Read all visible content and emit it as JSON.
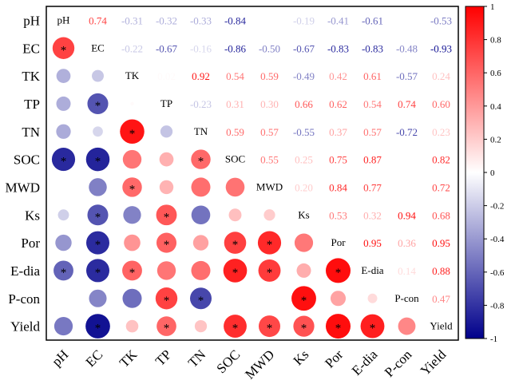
{
  "chart_data": {
    "type": "heatmap",
    "title": "",
    "variables": [
      "pH",
      "EC",
      "TK",
      "TP",
      "TN",
      "SOC",
      "MWD",
      "Ks",
      "Por",
      "E-dia",
      "P-con",
      "Yield"
    ],
    "matrix": [
      [
        1.0,
        0.74,
        -0.31,
        -0.32,
        -0.33,
        -0.84,
        null,
        -0.19,
        -0.41,
        -0.61,
        null,
        -0.53
      ],
      [
        0.74,
        1.0,
        -0.22,
        -0.67,
        -0.16,
        -0.86,
        -0.5,
        -0.67,
        -0.83,
        -0.83,
        -0.48,
        -0.93
      ],
      [
        -0.31,
        -0.22,
        1.0,
        0.02,
        0.92,
        0.54,
        0.59,
        -0.49,
        0.42,
        0.61,
        -0.57,
        0.24
      ],
      [
        -0.32,
        -0.67,
        0.02,
        1.0,
        -0.23,
        0.31,
        0.3,
        0.66,
        0.62,
        0.54,
        0.74,
        0.6
      ],
      [
        -0.33,
        -0.16,
        0.92,
        -0.23,
        1.0,
        0.59,
        0.57,
        -0.55,
        0.37,
        0.57,
        -0.72,
        0.23
      ],
      [
        -0.84,
        -0.86,
        0.54,
        0.31,
        0.59,
        1.0,
        0.55,
        0.25,
        0.75,
        0.87,
        null,
        0.82
      ],
      [
        null,
        -0.5,
        0.59,
        0.3,
        0.57,
        0.55,
        1.0,
        0.2,
        0.84,
        0.77,
        null,
        0.72
      ],
      [
        -0.19,
        -0.67,
        -0.49,
        0.66,
        -0.55,
        0.25,
        0.2,
        1.0,
        0.53,
        0.32,
        0.94,
        0.68
      ],
      [
        -0.41,
        -0.83,
        0.42,
        0.62,
        0.37,
        0.75,
        0.84,
        0.53,
        1.0,
        0.95,
        0.36,
        0.95
      ],
      [
        -0.61,
        -0.83,
        0.61,
        0.54,
        0.57,
        0.87,
        0.77,
        0.32,
        0.95,
        1.0,
        0.14,
        0.88
      ],
      [
        null,
        -0.48,
        -0.57,
        0.74,
        -0.72,
        null,
        null,
        0.94,
        0.36,
        0.14,
        1.0,
        0.47
      ],
      [
        -0.53,
        -0.93,
        0.24,
        0.6,
        0.23,
        0.82,
        0.72,
        0.68,
        0.95,
        0.88,
        0.47,
        1.0
      ]
    ],
    "significant": [
      [
        1,
        0
      ],
      [
        4,
        2
      ],
      [
        5,
        0
      ],
      [
        5,
        1
      ],
      [
        5,
        4
      ],
      [
        6,
        2
      ],
      [
        7,
        1
      ],
      [
        7,
        3
      ],
      [
        8,
        1
      ],
      [
        8,
        3
      ],
      [
        8,
        5
      ],
      [
        8,
        6
      ],
      [
        9,
        0
      ],
      [
        9,
        1
      ],
      [
        9,
        2
      ],
      [
        9,
        5
      ],
      [
        9,
        6
      ],
      [
        9,
        8
      ],
      [
        10,
        3
      ],
      [
        10,
        4
      ],
      [
        10,
        7
      ],
      [
        11,
        1
      ],
      [
        11,
        3
      ],
      [
        11,
        5
      ],
      [
        11,
        6
      ],
      [
        11,
        7
      ],
      [
        11,
        8
      ],
      [
        11,
        9
      ],
      [
        3,
        1
      ]
    ],
    "significance_marker": "*",
    "colorbar": {
      "range": [
        -1,
        1
      ],
      "ticks": [
        1,
        0.8,
        0.6,
        0.4,
        0.2,
        0,
        -0.2,
        -0.4,
        -0.6,
        -0.8,
        -1
      ],
      "colors": [
        "#00008b",
        "#ffffff",
        "#ff0000"
      ]
    },
    "layout_note": "upper triangle shows coefficient text, lower triangle shows circles sized by |r|, diagonal shows variable names"
  }
}
